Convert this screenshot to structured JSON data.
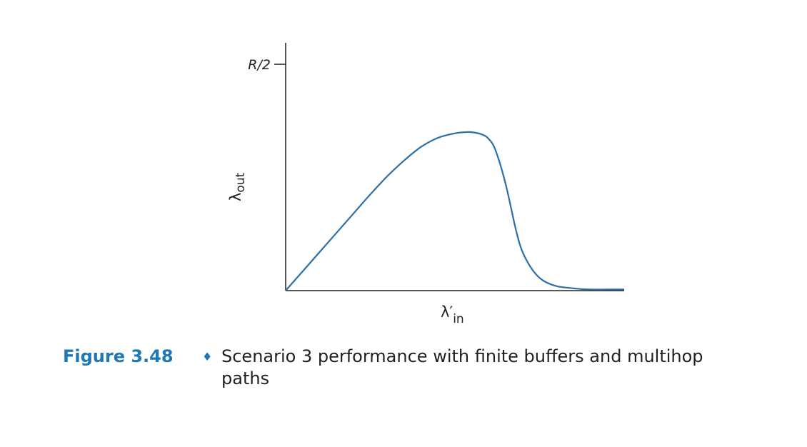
{
  "chart_data": {
    "type": "line",
    "title": "",
    "xlabel": {
      "base": "λ′",
      "sub": "in"
    },
    "ylabel": {
      "base": "λ",
      "sub": "out"
    },
    "yticks": [
      "R/2"
    ],
    "ylim": [
      0,
      1
    ],
    "xlim": [
      0,
      1
    ],
    "series": [
      {
        "x": [
          0,
          0.05,
          0.1,
          0.15,
          0.2,
          0.25,
          0.3,
          0.35,
          0.4,
          0.45,
          0.5,
          0.53,
          0.55,
          0.58,
          0.6,
          0.62,
          0.65,
          0.68,
          0.7,
          0.73,
          0.76,
          0.8,
          0.85,
          0.9,
          0.95,
          1.0
        ],
        "y": [
          0,
          0.085,
          0.17,
          0.255,
          0.34,
          0.425,
          0.505,
          0.575,
          0.635,
          0.675,
          0.695,
          0.7,
          0.7,
          0.69,
          0.67,
          0.62,
          0.47,
          0.27,
          0.17,
          0.09,
          0.045,
          0.02,
          0.01,
          0.005,
          0.005,
          0.005
        ],
        "color": "#2a6fa8"
      }
    ],
    "grid": false,
    "legend": "none"
  },
  "caption": {
    "figure_number": "Figure 3.48",
    "separator": "♦",
    "text": "Scenario 3 performance with finite buffers and multihop paths"
  },
  "colors": {
    "accent": "#1f78b4",
    "line": "#2a6fa8",
    "axis": "#231f20"
  }
}
